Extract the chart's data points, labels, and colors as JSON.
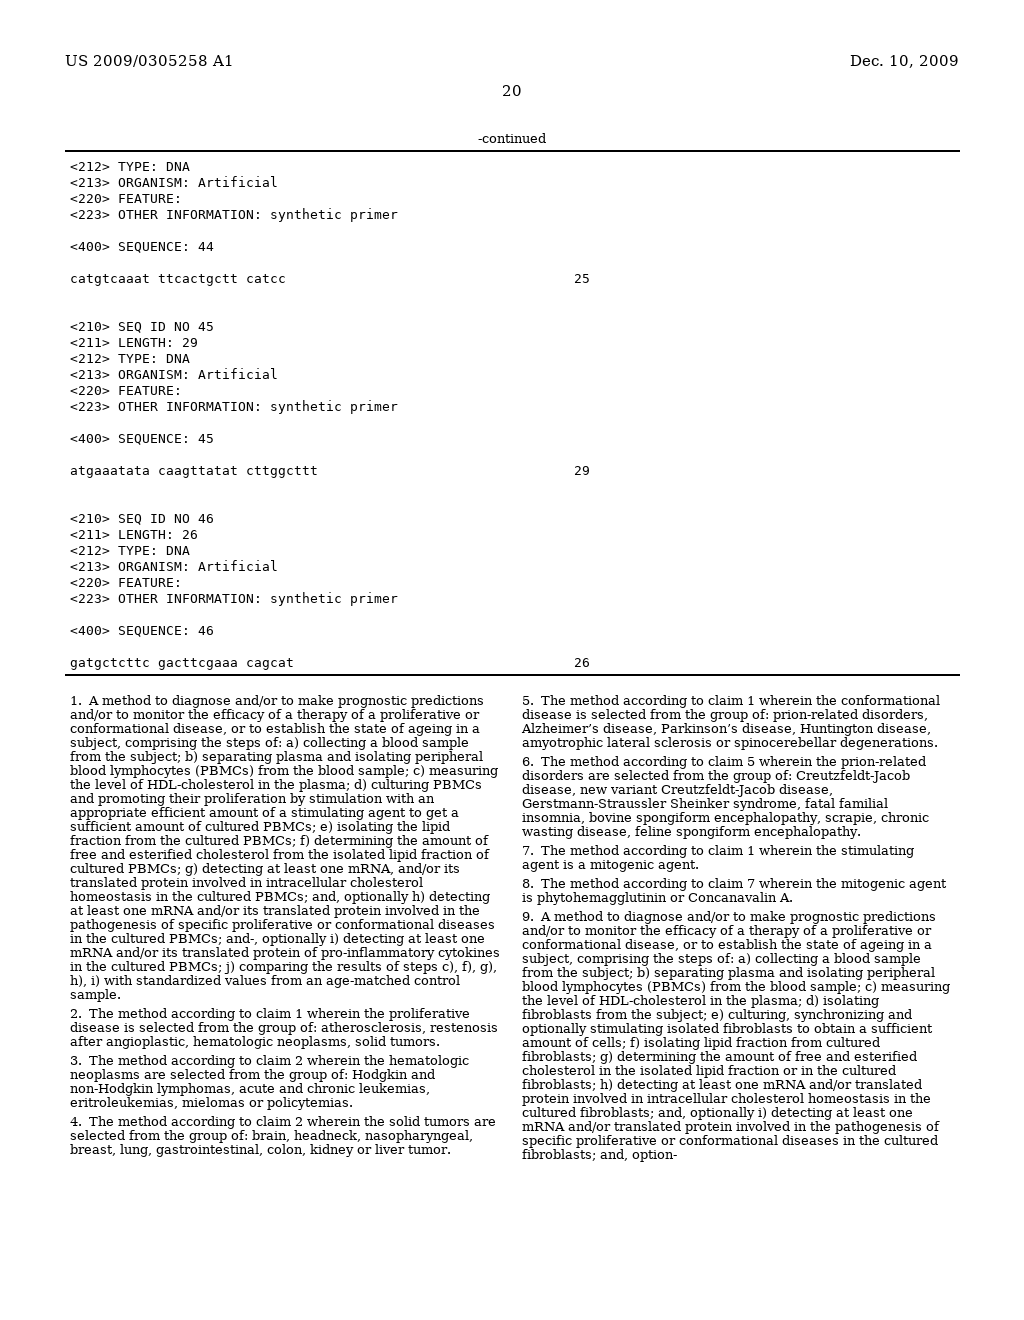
{
  "background_color": "#ffffff",
  "header_left": "US 2009/0305258 A1",
  "header_right": "Dec. 10, 2009",
  "page_number": "20",
  "continued_label": "-continued",
  "monospace_lines": [
    "<212> TYPE: DNA",
    "<213> ORGANISM: Artificial",
    "<220> FEATURE:",
    "<223> OTHER INFORMATION: synthetic primer",
    "",
    "<400> SEQUENCE: 44",
    "",
    "catgtcaaat ttcactgctt catcc                                    25",
    "",
    "",
    "<210> SEQ ID NO 45",
    "<211> LENGTH: 29",
    "<212> TYPE: DNA",
    "<213> ORGANISM: Artificial",
    "<220> FEATURE:",
    "<223> OTHER INFORMATION: synthetic primer",
    "",
    "<400> SEQUENCE: 45",
    "",
    "atgaaatata caagttatat cttggcttt                                29",
    "",
    "",
    "<210> SEQ ID NO 46",
    "<211> LENGTH: 26",
    "<212> TYPE: DNA",
    "<213> ORGANISM: Artificial",
    "<220> FEATURE:",
    "<223> OTHER INFORMATION: synthetic primer",
    "",
    "<400> SEQUENCE: 46",
    "",
    "gatgctcttc gacttcgaaa cagcat                                   26"
  ],
  "col1_paragraphs": [
    "        1. A method to diagnose and/or to make prognostic predictions and/or to monitor the efficacy of a therapy of a proliferative or conformational disease, or to establish the state of ageing in a subject, comprising the steps of: a) collecting a blood sample from the subject; b) separating plasma and isolating peripheral blood lymphocytes (PBMCs) from the blood sample; c) measuring the level of HDL-cholesterol in the plasma; d) culturing PBMCs and promoting their proliferation by stimulation with an appropriate efficient amount of a stimulating agent to get a sufficient amount of cultured PBMCs; e) isolating the lipid fraction from the cultured PBMCs; f) determining the amount of free and esterified cholesterol from the isolated lipid fraction of cultured PBMCs; g) detecting at least one mRNA, and/or its translated protein involved in intracellular cholesterol homeostasis in the cultured PBMCs; and, optionally h) detecting at least one mRNA and/or its translated protein involved in the pathogenesis of specific proliferative or conformational diseases in the cultured PBMCs; and-, optionally i) detecting at least one mRNA and/or its translated protein of pro-inflammatory cytokines in the cultured PBMCs; j) comparing the results of steps c), f), g), h), i) with standardized values from an age-matched control sample.",
    "        2. The method according to claim 1 wherein the proliferative disease is selected from the group of: atherosclerosis, restenosis after angioplastic, hematologic neoplasms, solid tumors.",
    "        3. The method according to claim 2 wherein the hematologic neoplasms are selected from the group of: Hodgkin and non-Hodgkin lymphomas, acute and chronic leukemias, eritroleukemias, mielomas or policytemias.",
    "        4. The method according to claim 2 wherein the solid tumors are selected from the group of: brain, headneck, nasopharyngeal, breast, lung, gastrointestinal, colon, kidney or liver tumor."
  ],
  "col2_paragraphs": [
    "        5. The method according to claim 1 wherein the conformational disease is selected from the group of: prion-related disorders, Alzheimer’s disease, Parkinson’s disease, Huntington disease, amyotrophic lateral sclerosis or spinocerebellar degenerations.",
    "        6. The method according to claim 5 wherein the prion-related disorders are selected from the group of: Creutzfeldt-Jacob disease, new variant Creutzfeldt-Jacob disease, Gerstmann-Straussler Sheinker syndrome, fatal familial insomnia, bovine spongiform encephalopathy, scrapie, chronic wasting disease, feline spongiform encephalopathy.",
    "        7. The method according to claim 1 wherein the stimulating agent is a mitogenic agent.",
    "        8. The method according to claim 7 wherein the mitogenic agent is phytohemagglutinin or Concanavalin A.",
    "        9. A method to diagnose and/or to make prognostic predictions and/or to monitor the efficacy of a therapy of a proliferative or conformational disease, or to establish the state of ageing in a subject, comprising the steps of: a) collecting a blood sample from the subject; b) separating plasma and isolating peripheral blood lymphocytes (PBMCs) from the blood sample; c) measuring the level of HDL-cholesterol in the plasma; d) isolating fibroblasts from the subject; e) culturing, synchronizing and optionally stimulating isolated fibroblasts to obtain a sufficient amount of cells; f) isolating lipid fraction from cultured fibroblasts; g) determining the amount of free and esterified cholesterol in the isolated lipid fraction or in the cultured fibroblasts; h) detecting at least one mRNA and/or translated protein involved in intracellular cholesterol homeostasis in the cultured fibroblasts; and, optionally i) detecting at least one mRNA and/or translated protein involved in the pathogenesis of specific proliferative or conformational diseases in the cultured fibroblasts; and, option-"
  ]
}
